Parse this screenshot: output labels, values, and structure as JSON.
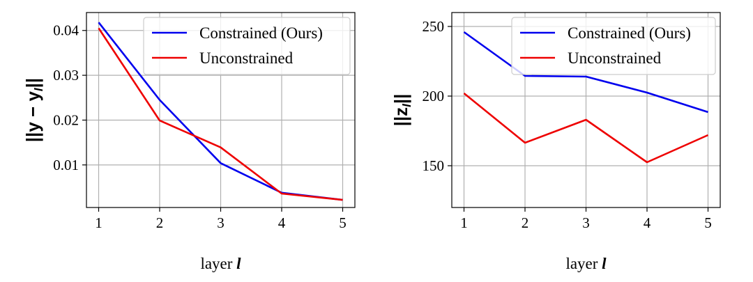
{
  "chart_data": [
    {
      "type": "line",
      "xlabel": "layer ",
      "xlabel_var": "l",
      "ylabel": "||y − y_l||",
      "ylabel_parts": {
        "left": "||",
        "y": "y",
        "minus": " − ",
        "y2": "y",
        "sub": "l",
        "right": "||"
      },
      "x": [
        1,
        2,
        3,
        4,
        5
      ],
      "xticks": [
        "1",
        "2",
        "3",
        "4",
        "5"
      ],
      "yticks": [
        {
          "value": 0.01,
          "label": "0.01"
        },
        {
          "value": 0.02,
          "label": "0.02"
        },
        {
          "value": 0.03,
          "label": "0.03"
        },
        {
          "value": 0.04,
          "label": "0.04"
        }
      ],
      "xlim": [
        0.8,
        5.2
      ],
      "ylim": [
        0.0005,
        0.044
      ],
      "grid": true,
      "legend": "top-right",
      "series": [
        {
          "name": "Constrained (Ours)",
          "color": "#0000ee",
          "values": [
            0.0418,
            0.0245,
            0.0104,
            0.0038,
            0.0022
          ]
        },
        {
          "name": "Unconstrained",
          "color": "#ee0000",
          "values": [
            0.0405,
            0.0199,
            0.0139,
            0.0036,
            0.0022
          ]
        }
      ]
    },
    {
      "type": "line",
      "xlabel": "layer ",
      "xlabel_var": "l",
      "ylabel": "||z_l||",
      "ylabel_parts": {
        "left": "||",
        "z": "z",
        "sub": "l",
        "right": "||"
      },
      "x": [
        1,
        2,
        3,
        4,
        5
      ],
      "xticks": [
        "1",
        "2",
        "3",
        "4",
        "5"
      ],
      "yticks": [
        {
          "value": 150,
          "label": "150"
        },
        {
          "value": 200,
          "label": "200"
        },
        {
          "value": 250,
          "label": "250"
        }
      ],
      "xlim": [
        0.8,
        5.2
      ],
      "ylim": [
        120,
        260
      ],
      "grid": true,
      "legend": "top-right",
      "series": [
        {
          "name": "Constrained (Ours)",
          "color": "#0000ee",
          "values": [
            246,
            214.5,
            214,
            202.5,
            188.5
          ]
        },
        {
          "name": "Unconstrained",
          "color": "#ee0000",
          "values": [
            202,
            166.5,
            183,
            152.5,
            172
          ]
        }
      ]
    }
  ]
}
